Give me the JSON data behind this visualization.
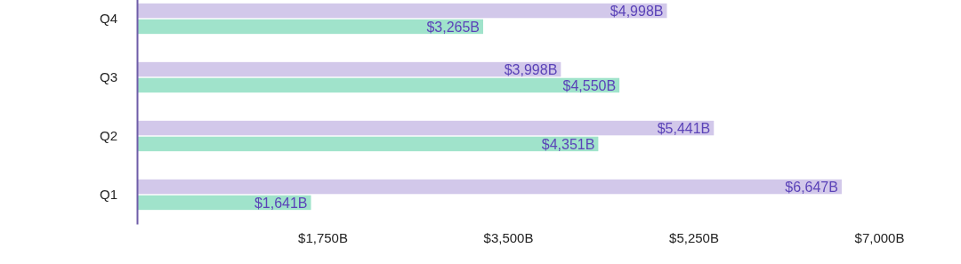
{
  "chart_data": {
    "type": "bar",
    "orientation": "horizontal",
    "categories": [
      "Q4",
      "Q3",
      "Q2",
      "Q1"
    ],
    "series": [
      {
        "color": "#d2c8ea",
        "values": [
          4998,
          3998,
          5441,
          6647
        ],
        "value_labels": [
          "$4,998B",
          "$3,998B",
          "$5,441B",
          "$6,647B"
        ]
      },
      {
        "color": "#a0e3cb",
        "values": [
          3265,
          4550,
          4351,
          1641
        ],
        "value_labels": [
          "$3,265B",
          "$4,550B",
          "$4,351B",
          "$1,641B"
        ]
      }
    ],
    "xlim": [
      0,
      7000
    ],
    "xticks": [
      {
        "value": 1750,
        "label": "$1,750B"
      },
      {
        "value": 3500,
        "label": "$3,500B"
      },
      {
        "value": 5250,
        "label": "$5,250B"
      },
      {
        "value": 7000,
        "label": "$7,000B"
      }
    ],
    "grid": false
  }
}
